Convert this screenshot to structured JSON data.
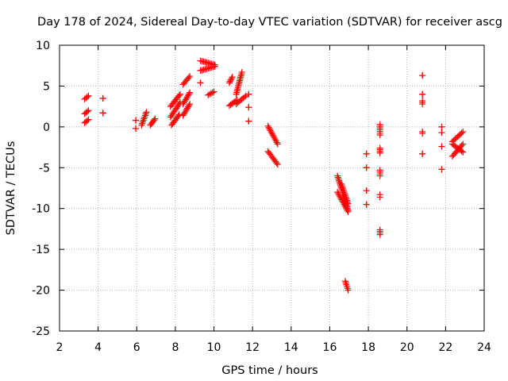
{
  "chart_data": {
    "type": "scatter",
    "title": "Day 178 of 2024, Sidereal Day-to-day VTEC variation (SDTVAR) for receiver ascg",
    "xlabel": "GPS time / hours",
    "ylabel": "SDTVAR / TECUs",
    "xlim": [
      2,
      24
    ],
    "ylim": [
      -25,
      10
    ],
    "xticks": [
      2,
      4,
      6,
      8,
      10,
      12,
      14,
      16,
      18,
      20,
      22,
      24
    ],
    "yticks": [
      10,
      5,
      0,
      -5,
      -10,
      -15,
      -20,
      -25
    ],
    "grid": true,
    "marker": "plus",
    "series_color": "#ff0000",
    "segments": [
      {
        "x0": 3.3,
        "x1": 3.5,
        "y0": 3.4,
        "y1": 3.8
      },
      {
        "x0": 3.3,
        "x1": 3.5,
        "y0": 1.6,
        "y1": 2.0
      },
      {
        "x0": 3.3,
        "x1": 3.5,
        "y0": 0.5,
        "y1": 0.9
      },
      {
        "x0": 4.25,
        "x1": 4.25,
        "y0": 3.5,
        "y1": 3.5
      },
      {
        "x0": 4.25,
        "x1": 4.25,
        "y0": 1.7,
        "y1": 1.7
      },
      {
        "x0": 5.95,
        "x1": 5.95,
        "y0": 0.8,
        "y1": 0.8
      },
      {
        "x0": 5.95,
        "x1": 5.95,
        "y0": -0.2,
        "y1": -0.2
      },
      {
        "x0": 6.25,
        "x1": 6.5,
        "y0": 0.2,
        "y1": 1.8
      },
      {
        "x0": 6.7,
        "x1": 6.95,
        "y0": 0.2,
        "y1": 1.0
      },
      {
        "x0": 7.75,
        "x1": 8.25,
        "y0": 2.5,
        "y1": 4.0
      },
      {
        "x0": 7.75,
        "x1": 8.25,
        "y0": 1.2,
        "y1": 3.0
      },
      {
        "x0": 7.8,
        "x1": 8.2,
        "y0": 0.2,
        "y1": 1.5
      },
      {
        "x0": 8.4,
        "x1": 8.75,
        "y0": 5.2,
        "y1": 6.2
      },
      {
        "x0": 8.4,
        "x1": 8.75,
        "y0": 2.8,
        "y1": 4.2
      },
      {
        "x0": 8.4,
        "x1": 8.75,
        "y0": 1.4,
        "y1": 2.8
      },
      {
        "x0": 9.3,
        "x1": 10.05,
        "y0": 8.1,
        "y1": 7.6
      },
      {
        "x0": 9.3,
        "x1": 10.05,
        "y0": 6.9,
        "y1": 7.4
      },
      {
        "x0": 9.3,
        "x1": 9.3,
        "y0": 5.4,
        "y1": 5.4
      },
      {
        "x0": 9.7,
        "x1": 10.0,
        "y0": 3.9,
        "y1": 4.3
      },
      {
        "x0": 10.8,
        "x1": 10.95,
        "y0": 5.4,
        "y1": 6.1
      },
      {
        "x0": 10.8,
        "x1": 11.2,
        "y0": 2.6,
        "y1": 3.3
      },
      {
        "x0": 11.15,
        "x1": 11.45,
        "y0": 4.0,
        "y1": 6.7
      },
      {
        "x0": 11.15,
        "x1": 11.65,
        "y0": 2.8,
        "y1": 3.8
      },
      {
        "x0": 11.8,
        "x1": 11.8,
        "y0": 4.0,
        "y1": 4.0
      },
      {
        "x0": 11.8,
        "x1": 11.8,
        "y0": 2.4,
        "y1": 2.4
      },
      {
        "x0": 11.8,
        "x1": 11.8,
        "y0": 0.7,
        "y1": 0.7
      },
      {
        "x0": 12.8,
        "x1": 13.3,
        "y0": 0.1,
        "y1": -2.1
      },
      {
        "x0": 12.8,
        "x1": 13.3,
        "y0": -3.0,
        "y1": -4.6
      },
      {
        "x0": 16.4,
        "x1": 16.95,
        "y0": -6.0,
        "y1": -10.2
      },
      {
        "x0": 16.4,
        "x1": 16.95,
        "y0": -8.0,
        "y1": -10.4
      },
      {
        "x0": 16.6,
        "x1": 16.95,
        "y0": -7.0,
        "y1": -9.4
      },
      {
        "x0": 16.8,
        "x1": 16.95,
        "y0": -18.9,
        "y1": -20.0
      },
      {
        "x0": 17.9,
        "x1": 17.9,
        "y0": -3.3,
        "y1": -3.3
      },
      {
        "x0": 17.9,
        "x1": 17.9,
        "y0": -5.0,
        "y1": -5.0
      },
      {
        "x0": 17.9,
        "x1": 17.9,
        "y0": -7.8,
        "y1": -7.8
      },
      {
        "x0": 17.9,
        "x1": 17.9,
        "y0": -9.5,
        "y1": -9.5
      },
      {
        "x0": 18.6,
        "x1": 18.6,
        "y0": 0.3,
        "y1": -1.0
      },
      {
        "x0": 18.6,
        "x1": 18.6,
        "y0": -2.6,
        "y1": -3.2
      },
      {
        "x0": 18.6,
        "x1": 18.6,
        "y0": -5.3,
        "y1": -6.0
      },
      {
        "x0": 18.6,
        "x1": 18.6,
        "y0": -8.3,
        "y1": -8.6
      },
      {
        "x0": 18.6,
        "x1": 18.6,
        "y0": -12.6,
        "y1": -13.2
      },
      {
        "x0": 20.8,
        "x1": 20.8,
        "y0": 6.3,
        "y1": 6.3
      },
      {
        "x0": 20.8,
        "x1": 20.8,
        "y0": 4.0,
        "y1": 4.0
      },
      {
        "x0": 20.8,
        "x1": 20.8,
        "y0": 3.2,
        "y1": 2.8
      },
      {
        "x0": 20.8,
        "x1": 20.8,
        "y0": -0.6,
        "y1": -0.8
      },
      {
        "x0": 20.8,
        "x1": 20.8,
        "y0": -3.3,
        "y1": -3.3
      },
      {
        "x0": 21.8,
        "x1": 21.8,
        "y0": 0.0,
        "y1": 0.0
      },
      {
        "x0": 21.8,
        "x1": 21.8,
        "y0": -0.7,
        "y1": -0.7
      },
      {
        "x0": 21.8,
        "x1": 21.8,
        "y0": -2.4,
        "y1": -2.4
      },
      {
        "x0": 21.8,
        "x1": 21.8,
        "y0": -5.2,
        "y1": -5.2
      },
      {
        "x0": 22.35,
        "x1": 22.9,
        "y0": -1.8,
        "y1": -0.6
      },
      {
        "x0": 22.35,
        "x1": 22.9,
        "y0": -3.6,
        "y1": -2.1
      },
      {
        "x0": 22.35,
        "x1": 22.9,
        "y0": -2.1,
        "y1": -3.1
      }
    ]
  }
}
